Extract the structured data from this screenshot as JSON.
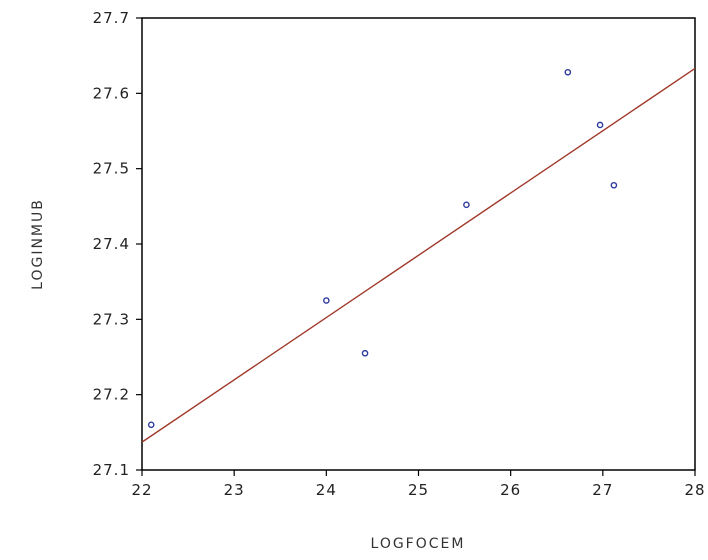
{
  "chart_data": {
    "type": "scatter",
    "title": "",
    "xlabel": "LOGFOCEM",
    "ylabel": "LOGINMUB",
    "xlim": [
      22,
      28
    ],
    "ylim": [
      27.1,
      27.7
    ],
    "x_ticks": [
      "22",
      "23",
      "24",
      "25",
      "26",
      "27",
      "28"
    ],
    "y_ticks": [
      "27.1",
      "27.2",
      "27.3",
      "27.4",
      "27.5",
      "27.6",
      "27.7"
    ],
    "grid": false,
    "series": [
      {
        "points": [
          {
            "x": 22.1,
            "y": 27.16
          },
          {
            "x": 24.0,
            "y": 27.325
          },
          {
            "x": 24.42,
            "y": 27.255
          },
          {
            "x": 25.52,
            "y": 27.452
          },
          {
            "x": 26.62,
            "y": 27.628
          },
          {
            "x": 26.97,
            "y": 27.558
          },
          {
            "x": 27.12,
            "y": 27.478
          }
        ],
        "marker_color": "#2b3a9e"
      }
    ],
    "fit_line": {
      "x": [
        22,
        28
      ],
      "y": [
        27.137,
        27.633
      ],
      "color": "#a0392a"
    }
  }
}
